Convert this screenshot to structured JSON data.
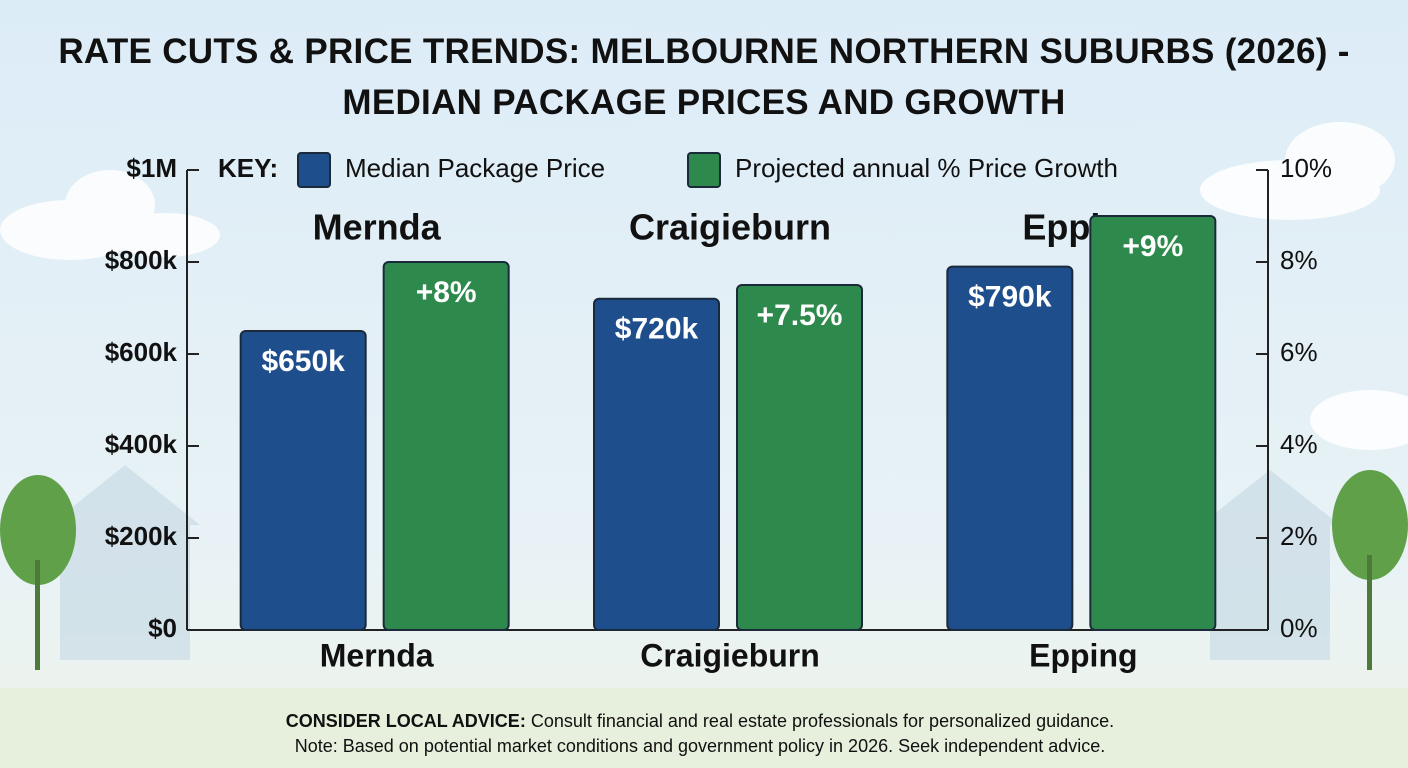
{
  "chart_data": {
    "type": "bar",
    "title": "RATE CUTS & PRICE TRENDS: MELBOURNE NORTHERN SUBURBS (2026) - MEDIAN PACKAGE PRICES AND GROWTH",
    "legend_title": "KEY:",
    "categories": [
      "Mernda",
      "Craigieburn",
      "Epping"
    ],
    "series": [
      {
        "name": "Median Package Price",
        "color": "#1f4e8c",
        "values": [
          650000,
          720000,
          790000
        ],
        "value_labels": [
          "$650k",
          "$720k",
          "$790k"
        ]
      },
      {
        "name": "Projected annual % Price Growth",
        "color": "#2e8a4c",
        "axis": "y2",
        "values": [
          8,
          7.5,
          9
        ],
        "value_labels": [
          "+8%",
          "+7.5%",
          "+9%"
        ]
      }
    ],
    "ylim": [
      0,
      1000000
    ],
    "yticks": [
      {
        "value": 0,
        "label": "$0"
      },
      {
        "value": 200000,
        "label": "$200k"
      },
      {
        "value": 400000,
        "label": "$400k"
      },
      {
        "value": 600000,
        "label": "$600k"
      },
      {
        "value": 800000,
        "label": "$800k"
      },
      {
        "value": 1000000,
        "label": "$1M"
      }
    ],
    "y2lim": [
      0,
      10
    ],
    "y2ticks": [
      {
        "value": 0,
        "label": "0%"
      },
      {
        "value": 2,
        "label": "2%"
      },
      {
        "value": 4,
        "label": "4%"
      },
      {
        "value": 6,
        "label": "6%"
      },
      {
        "value": 8,
        "label": "8%"
      },
      {
        "value": 10,
        "label": "10%"
      }
    ],
    "footer_lead": "CONSIDER LOCAL ADVICE:",
    "footer_text": "Consult financial and real estate professionals for personalized guidance.",
    "note": "Note: Based on potential market conditions and government policy in 2026. Seek independent advice."
  }
}
